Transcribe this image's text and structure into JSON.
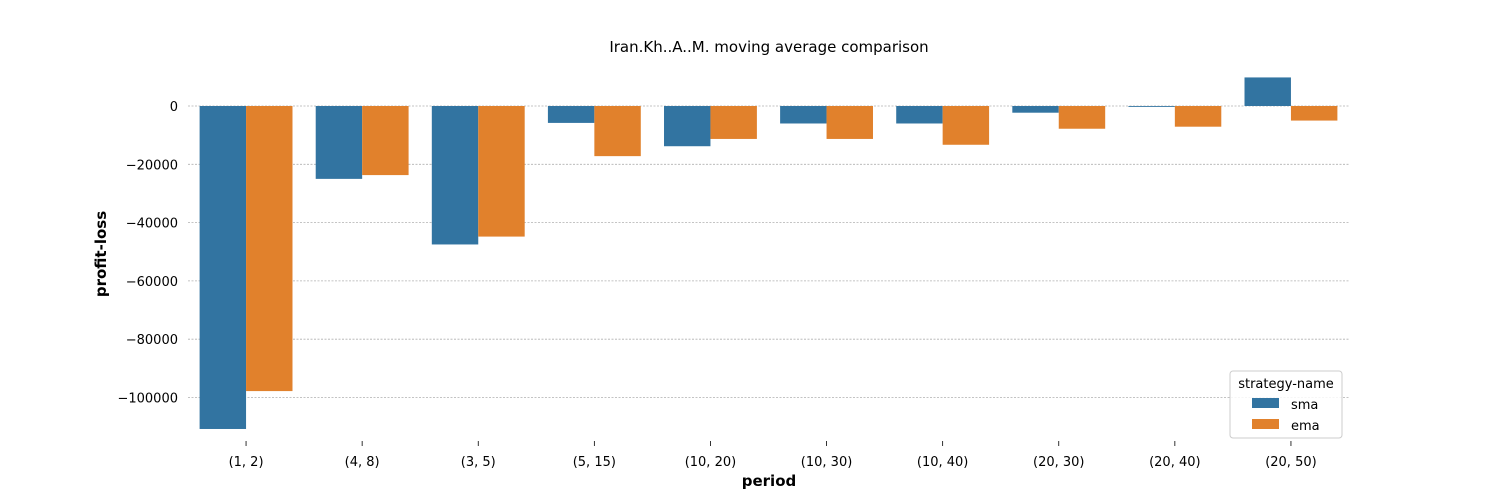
{
  "chart_data": {
    "type": "bar",
    "title": "Iran.Kh..A..M. moving average comparison",
    "xlabel": "period",
    "ylabel": "profit-loss",
    "categories": [
      "(1, 2)",
      "(4, 8)",
      "(3, 5)",
      "(5, 15)",
      "(10, 20)",
      "(10, 30)",
      "(10, 40)",
      "(20, 30)",
      "(20, 40)",
      "(20, 50)"
    ],
    "series": [
      {
        "name": "sma",
        "color": "#3274a1",
        "values": [
          -110800,
          -25000,
          -47500,
          -5800,
          -13800,
          -6000,
          -6000,
          -2300,
          -300,
          9800
        ]
      },
      {
        "name": "ema",
        "color": "#e1812c",
        "values": [
          -97800,
          -23700,
          -44800,
          -17200,
          -11300,
          -11300,
          -13300,
          -7800,
          -7100,
          -5000
        ]
      }
    ],
    "yticks": [
      0,
      -20000,
      -40000,
      -60000,
      -80000,
      -100000
    ],
    "ytick_labels": [
      "0",
      "−20000",
      "−40000",
      "−60000",
      "−80000",
      "−100000"
    ],
    "ylim": [
      -115000,
      12000
    ],
    "grid": "y-dashed",
    "legend": {
      "title": "strategy-name",
      "placement": "bottom-right"
    }
  }
}
